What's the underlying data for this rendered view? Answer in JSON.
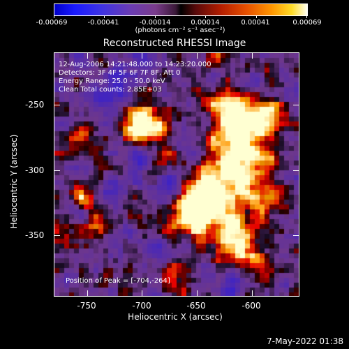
{
  "colorbar": {
    "ticks": [
      "-0.00069",
      "-0.00041",
      "-0.00014",
      "0.00014",
      "0.00041",
      "0.00069"
    ],
    "units": "(photons cm⁻² s⁻¹ asec⁻²)"
  },
  "title": "Reconstructed RHESSI Image",
  "info": {
    "time": "12-Aug-2006 14:21:48.000 to 14:23:20.000",
    "detectors": "Detectors: 3F 4F 5F 6F 7F 8F, Att 0",
    "energy": "Energy Range: 25.0 - 50.0 keV",
    "clean": "Clean     Total counts: 2.85E+03",
    "peak": "Position of Peak = [-704,-264]"
  },
  "axes": {
    "xlabel": "Heliocentric X (arcsec)",
    "ylabel": "Heliocentric Y (arcsec)",
    "xticks": [
      "-750",
      "-700",
      "-650",
      "-600"
    ],
    "yticks": [
      "-250",
      "-300",
      "-350"
    ]
  },
  "timestamp": "7-May-2022 01:38"
}
